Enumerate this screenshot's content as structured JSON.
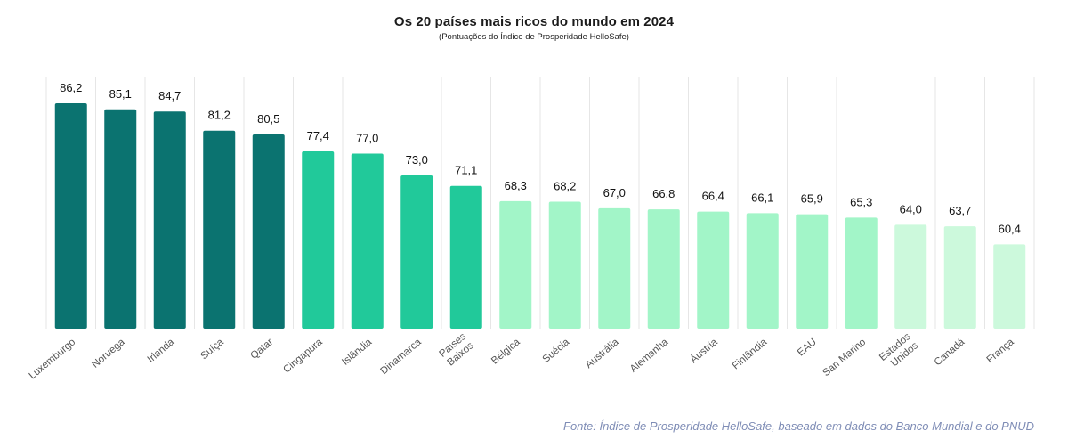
{
  "title": "Os 20 países mais ricos do mundo em 2024",
  "subtitle": "(Pontuações do Índice de Prosperidade HelloSafe)",
  "source": "Fonte: Índice de Prosperidade HelloSafe, baseado em dados do Banco Mundial e do PNUD",
  "colors": {
    "dark": "#0b7370",
    "medium": "#21c99a",
    "light": "#a2f5c8",
    "lightest": "#ccf9dc",
    "grid": "#e6e6e6",
    "axis": "#cccccc",
    "label": "#111111",
    "tick": "#555555"
  },
  "chart_data": {
    "type": "bar",
    "title": "Os 20 países mais ricos do mundo em 2024",
    "subtitle": "(Pontuações do Índice de Prosperidade HelloSafe)",
    "xlabel": "",
    "ylabel": "",
    "ylim": [
      45,
      90
    ],
    "grid": "vertical",
    "categories": [
      "Luxemburgo",
      "Noruega",
      "Irlanda",
      "Suíça",
      "Qatar",
      "Cingapura",
      "Islândia",
      "Dinamarca",
      "Países\nBaixos",
      "Bélgica",
      "Suécia",
      "Austrália",
      "Alemanha",
      "Áustria",
      "Finlândia",
      "EAU",
      "San Marino",
      "Estados\nUnidos",
      "Canadá",
      "França"
    ],
    "values": [
      86.2,
      85.1,
      84.7,
      81.2,
      80.5,
      77.4,
      77.0,
      73.0,
      71.1,
      68.3,
      68.2,
      67.0,
      66.8,
      66.4,
      66.1,
      65.9,
      65.3,
      64.0,
      63.7,
      60.4
    ],
    "value_labels": [
      "86,2",
      "85,1",
      "84,7",
      "81,2",
      "80,5",
      "77,4",
      "77,0",
      "73,0",
      "71,1",
      "68,3",
      "68,2",
      "67,0",
      "66,8",
      "66,4",
      "66,1",
      "65,9",
      "65,3",
      "64,0",
      "63,7",
      "60,4"
    ],
    "tiers": [
      "dark",
      "dark",
      "dark",
      "dark",
      "dark",
      "medium",
      "medium",
      "medium",
      "medium",
      "light",
      "light",
      "light",
      "light",
      "light",
      "light",
      "light",
      "light",
      "lightest",
      "lightest",
      "lightest"
    ]
  }
}
